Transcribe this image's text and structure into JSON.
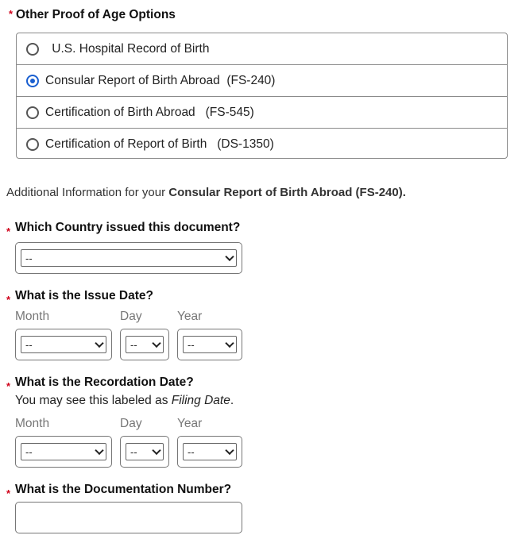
{
  "proof_options": {
    "label": "Other Proof of Age Options",
    "required_marker": "*",
    "options": [
      {
        "label": " U.S. Hospital Record of Birth",
        "selected": false
      },
      {
        "label": "Consular Report of Birth Abroad  (FS-240)",
        "selected": true
      },
      {
        "label": "Certification of Birth Abroad   (FS-545)",
        "selected": false
      },
      {
        "label": "Certification of Report of Birth   (DS-1350)",
        "selected": false
      }
    ]
  },
  "additional_info": {
    "prefix": "Additional Information for your ",
    "document": "Consular Report of Birth Abroad (FS-240)."
  },
  "country": {
    "label": "Which Country issued this document?",
    "value": "--"
  },
  "issue_date": {
    "label": "What is the Issue Date?",
    "month_label": "Month",
    "day_label": "Day",
    "year_label": "Year",
    "month": "--",
    "day": "--",
    "year": "--"
  },
  "recordation_date": {
    "label": "What is the Recordation Date?",
    "hint_prefix": "You may see this labeled as ",
    "hint_em": "Filing Date",
    "hint_suffix": ".",
    "month_label": "Month",
    "day_label": "Day",
    "year_label": "Year",
    "month": "--",
    "day": "--",
    "year": "--"
  },
  "doc_number": {
    "label": "What is the Documentation Number?",
    "value": ""
  },
  "colors": {
    "required": "#d0021b",
    "radio_selected": "#1a5fd0"
  }
}
